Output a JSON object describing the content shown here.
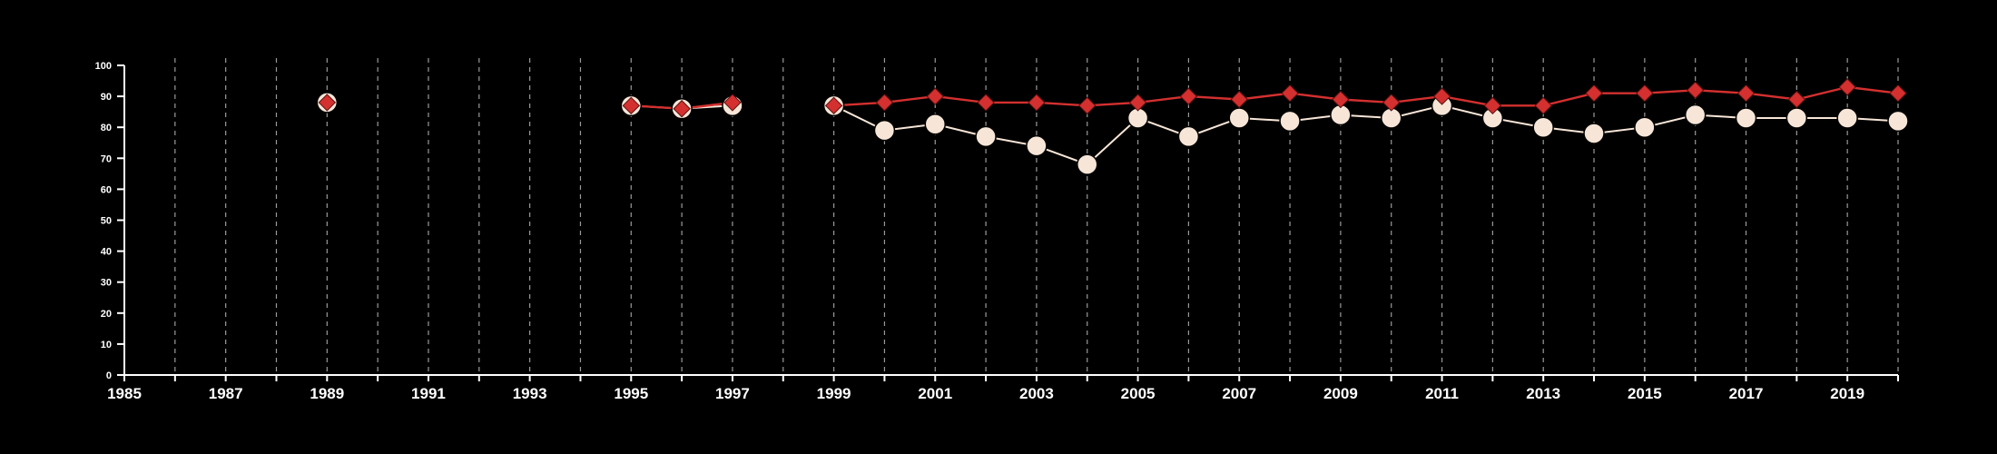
{
  "chart_data": {
    "type": "line",
    "title": "",
    "xlabel": "",
    "ylabel": "",
    "xlim": [
      1985,
      2020
    ],
    "ylim": [
      0,
      100
    ],
    "x_ticks_labeled": [
      1985,
      1987,
      1989,
      1991,
      1993,
      1995,
      1997,
      1999,
      2001,
      2003,
      2005,
      2007,
      2009,
      2011,
      2013,
      2015,
      2017,
      2019
    ],
    "y_ticks": [
      0,
      10,
      20,
      30,
      40,
      50,
      60,
      70,
      80,
      90,
      100
    ],
    "grid": "vertical dashed lines at each year",
    "legend": "none",
    "series": [
      {
        "color": "#d3302f",
        "marker": "diamond",
        "points": [
          {
            "x": 1989,
            "y": 88
          },
          {
            "x": 1995,
            "y": 87
          },
          {
            "x": 1996,
            "y": 86
          },
          {
            "x": 1997,
            "y": 88
          },
          {
            "x": 1999,
            "y": 87
          },
          {
            "x": 2000,
            "y": 88
          },
          {
            "x": 2001,
            "y": 90
          },
          {
            "x": 2002,
            "y": 88
          },
          {
            "x": 2003,
            "y": 88
          },
          {
            "x": 2004,
            "y": 87
          },
          {
            "x": 2005,
            "y": 88
          },
          {
            "x": 2006,
            "y": 90
          },
          {
            "x": 2007,
            "y": 89
          },
          {
            "x": 2008,
            "y": 91
          },
          {
            "x": 2009,
            "y": 89
          },
          {
            "x": 2010,
            "y": 88
          },
          {
            "x": 2011,
            "y": 90
          },
          {
            "x": 2012,
            "y": 87
          },
          {
            "x": 2013,
            "y": 87
          },
          {
            "x": 2014,
            "y": 91
          },
          {
            "x": 2015,
            "y": 91
          },
          {
            "x": 2016,
            "y": 92
          },
          {
            "x": 2017,
            "y": 91
          },
          {
            "x": 2018,
            "y": 89
          },
          {
            "x": 2019,
            "y": 93
          },
          {
            "x": 2020,
            "y": 91
          }
        ]
      },
      {
        "color": "#f7e6d8",
        "marker": "circle",
        "points": [
          {
            "x": 1989,
            "y": 88
          },
          {
            "x": 1995,
            "y": 87
          },
          {
            "x": 1996,
            "y": 86
          },
          {
            "x": 1997,
            "y": 87
          },
          {
            "x": 1999,
            "y": 87
          },
          {
            "x": 2000,
            "y": 79
          },
          {
            "x": 2001,
            "y": 81
          },
          {
            "x": 2002,
            "y": 77
          },
          {
            "x": 2003,
            "y": 74
          },
          {
            "x": 2004,
            "y": 68
          },
          {
            "x": 2005,
            "y": 83
          },
          {
            "x": 2006,
            "y": 77
          },
          {
            "x": 2007,
            "y": 83
          },
          {
            "x": 2008,
            "y": 82
          },
          {
            "x": 2009,
            "y": 84
          },
          {
            "x": 2010,
            "y": 83
          },
          {
            "x": 2011,
            "y": 87
          },
          {
            "x": 2012,
            "y": 83
          },
          {
            "x": 2013,
            "y": 80
          },
          {
            "x": 2014,
            "y": 78
          },
          {
            "x": 2015,
            "y": 80
          },
          {
            "x": 2016,
            "y": 84
          },
          {
            "x": 2017,
            "y": 83
          },
          {
            "x": 2018,
            "y": 83
          },
          {
            "x": 2019,
            "y": 83
          },
          {
            "x": 2020,
            "y": 82
          }
        ]
      }
    ]
  }
}
